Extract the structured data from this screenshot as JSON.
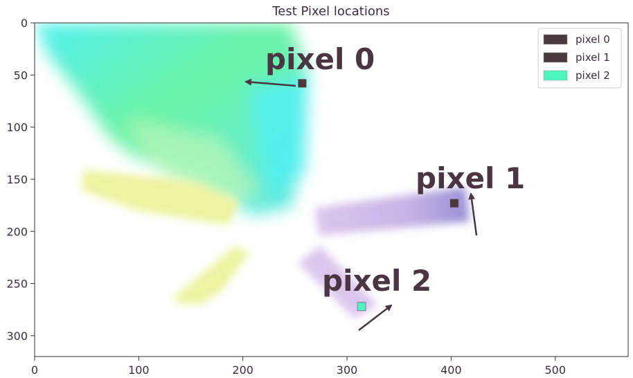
{
  "chart_data": {
    "type": "scatter",
    "title": "Test Pixel locations",
    "xlabel": "",
    "ylabel": "",
    "xlim": [
      0,
      570
    ],
    "ylim": [
      320,
      0
    ],
    "x_ticks": [
      0,
      100,
      200,
      300,
      400,
      500
    ],
    "y_ticks": [
      0,
      50,
      100,
      150,
      200,
      250,
      300
    ],
    "grid": false,
    "legend_position": "top-right",
    "series": [
      {
        "name": "pixel 0",
        "x": 257,
        "y": 58,
        "color": "#4a3a3c",
        "label": "pixel 0"
      },
      {
        "name": "pixel 1",
        "x": 403,
        "y": 173,
        "color": "#4a3a3c",
        "label": "pixel 1"
      },
      {
        "name": "pixel 2",
        "x": 314,
        "y": 272,
        "color": "#4cf5c0",
        "label": "pixel 2"
      }
    ],
    "arrow_color": "#4a3542"
  }
}
